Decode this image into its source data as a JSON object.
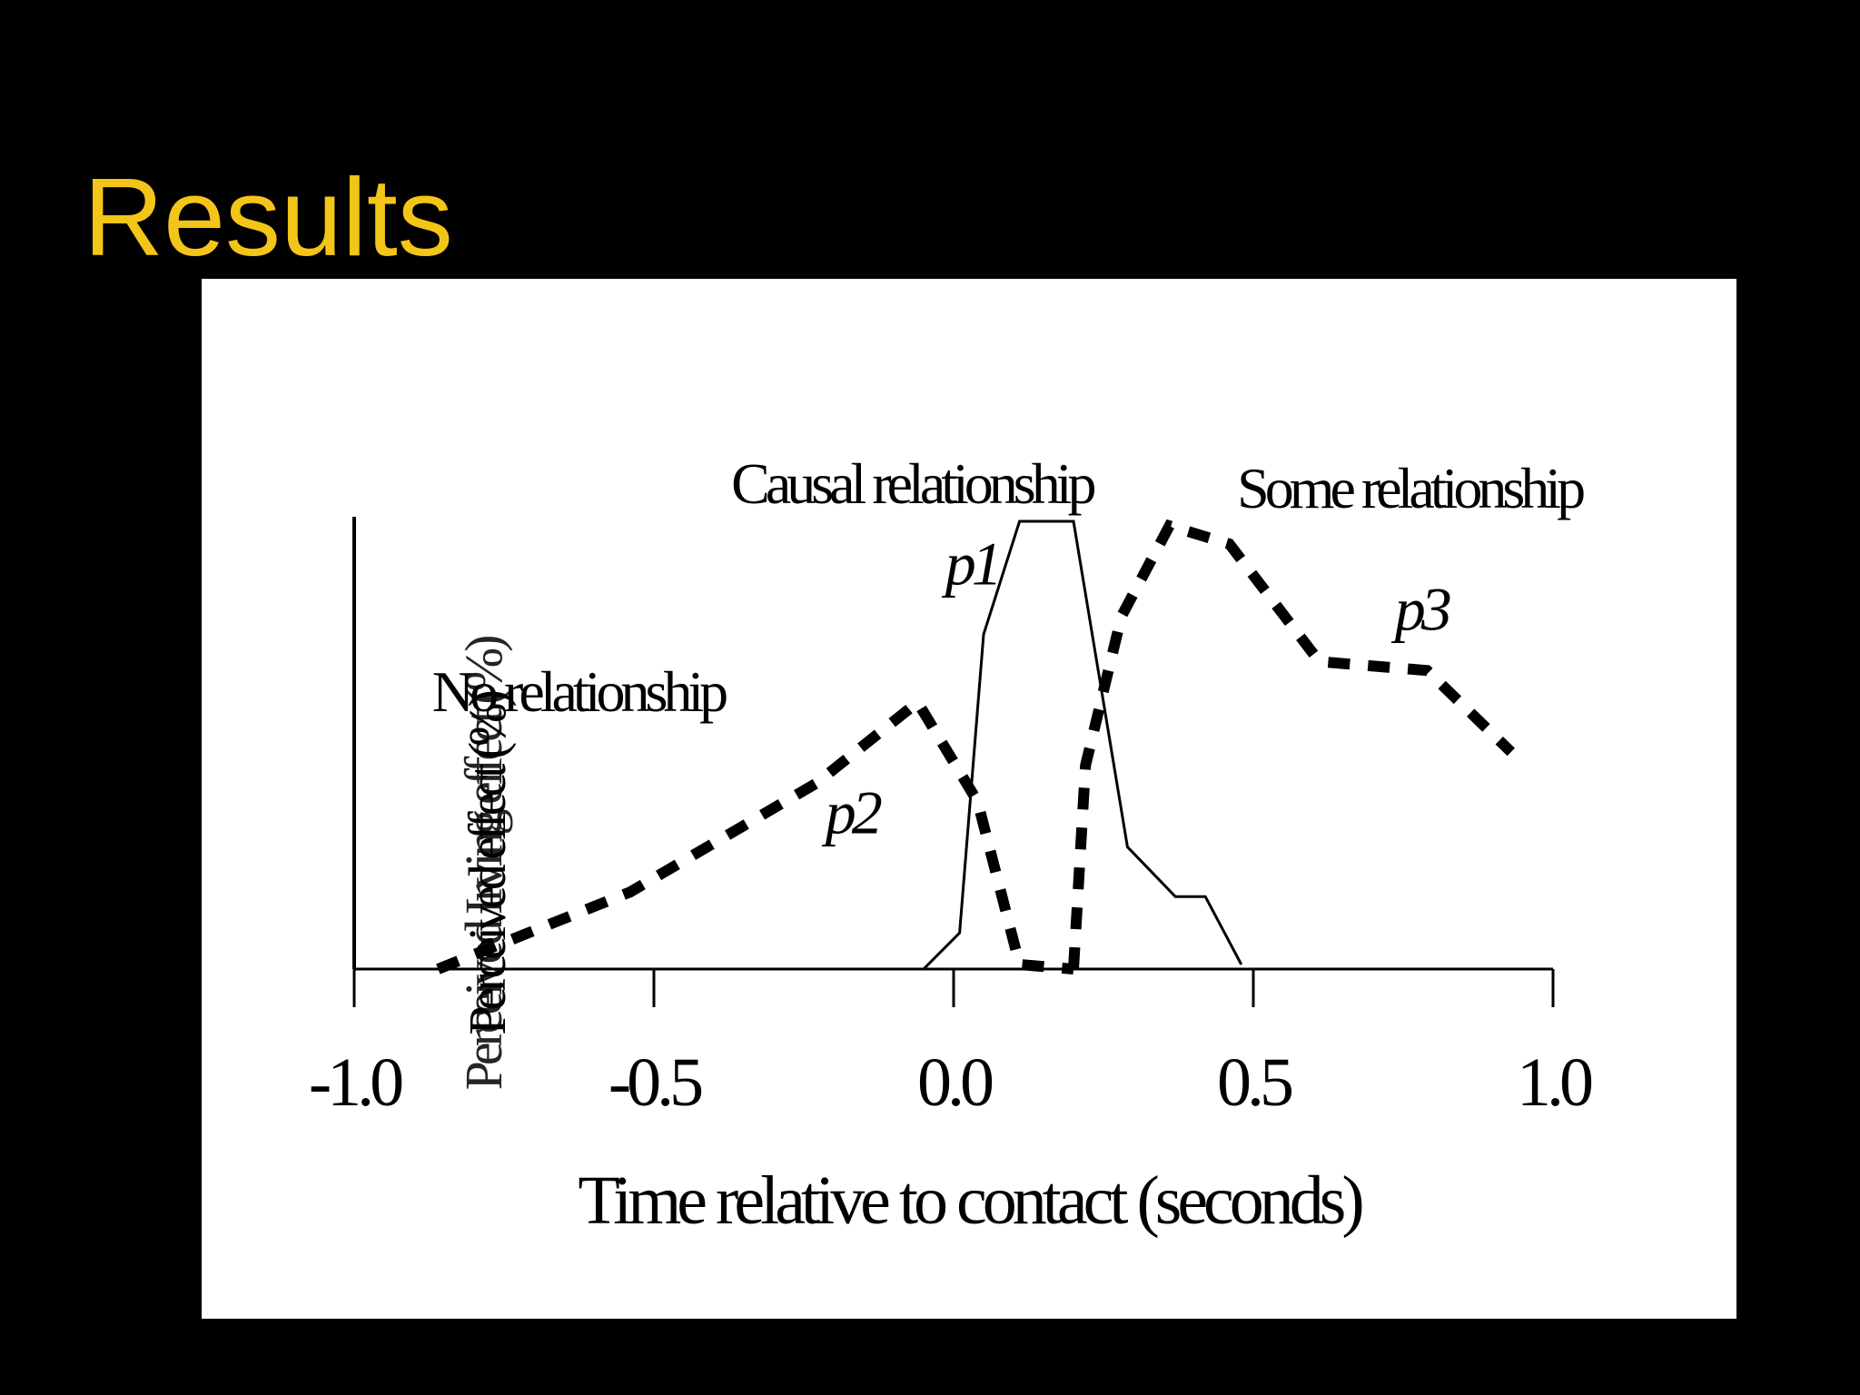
{
  "slide": {
    "title": "Results",
    "title_color": "#f3c518",
    "background": "#000000",
    "panel_color": "#ffffff"
  },
  "chart_data": {
    "type": "line",
    "title": "",
    "xlabel": "Time relative to contact (seconds)",
    "ylabel": "Perceived effect (%)",
    "ylabel_overlap": "Perceived Irving effect (%)",
    "xlim": [
      -1.0,
      1.0
    ],
    "x_ticks": [
      -1.0,
      -0.5,
      0.0,
      0.5,
      1.0
    ],
    "x_tick_labels": [
      "-1.0",
      "-0.5",
      "0.0",
      "0.5",
      "1.0"
    ],
    "ylim": [
      0,
      100
    ],
    "y_ticks_shown": false,
    "grid": false,
    "legend": "none",
    "region_labels": [
      {
        "text": "No relationship",
        "x": -0.87,
        "y": 57
      },
      {
        "text": "Causal relationship",
        "x": -0.07,
        "y": 103
      },
      {
        "text": "Some relationship",
        "x": 0.76,
        "y": 102
      }
    ],
    "series": [
      {
        "name": "p1",
        "style": "solid",
        "label_italic": true,
        "label_at": {
          "x": 0.03,
          "y": 85
        },
        "x": [
          -0.05,
          0.01,
          0.05,
          0.11,
          0.2,
          0.29,
          0.37,
          0.42,
          0.48
        ],
        "y": [
          0,
          8,
          74,
          99,
          99,
          27,
          16,
          16,
          1
        ]
      },
      {
        "name": "p2",
        "style": "dashed",
        "label_italic": true,
        "label_at": {
          "x": -0.17,
          "y": 30
        },
        "x": [
          -0.86,
          -0.54,
          -0.23,
          -0.06,
          0.04,
          0.11,
          0.2
        ],
        "y": [
          0,
          17,
          41,
          59,
          37,
          1,
          0
        ]
      },
      {
        "name": "p3",
        "style": "dashed",
        "label_italic": true,
        "label_at": {
          "x": 0.78,
          "y": 75
        },
        "x": [
          0.2,
          0.22,
          0.28,
          0.36,
          0.46,
          0.61,
          0.79,
          0.93
        ],
        "y": [
          0,
          45,
          78,
          98,
          94,
          68,
          66,
          48
        ]
      }
    ]
  }
}
